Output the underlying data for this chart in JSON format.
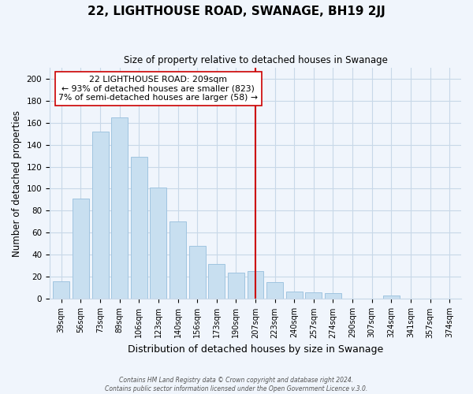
{
  "title": "22, LIGHTHOUSE ROAD, SWANAGE, BH19 2JJ",
  "subtitle": "Size of property relative to detached houses in Swanage",
  "xlabel": "Distribution of detached houses by size in Swanage",
  "ylabel": "Number of detached properties",
  "bar_labels": [
    "39sqm",
    "56sqm",
    "73sqm",
    "89sqm",
    "106sqm",
    "123sqm",
    "140sqm",
    "156sqm",
    "173sqm",
    "190sqm",
    "207sqm",
    "223sqm",
    "240sqm",
    "257sqm",
    "274sqm",
    "290sqm",
    "307sqm",
    "324sqm",
    "341sqm",
    "357sqm",
    "374sqm"
  ],
  "bar_values": [
    16,
    91,
    152,
    165,
    129,
    101,
    70,
    48,
    32,
    24,
    25,
    15,
    7,
    6,
    5,
    0,
    0,
    3,
    0,
    0,
    0
  ],
  "bar_color": "#c8dff0",
  "bar_edge_color": "#a0c4e0",
  "vline_x_index": 10,
  "vline_color": "#cc0000",
  "annotation_title": "22 LIGHTHOUSE ROAD: 209sqm",
  "annotation_line1": "← 93% of detached houses are smaller (823)",
  "annotation_line2": "7% of semi-detached houses are larger (58) →",
  "annotation_box_color": "#ffffff",
  "annotation_border_color": "#cc0000",
  "ylim": [
    0,
    210
  ],
  "yticks": [
    0,
    20,
    40,
    60,
    80,
    100,
    120,
    140,
    160,
    180,
    200
  ],
  "footer_line1": "Contains HM Land Registry data © Crown copyright and database right 2024.",
  "footer_line2": "Contains public sector information licensed under the Open Government Licence v.3.0.",
  "bg_color": "#f0f5fc",
  "grid_color": "#c8d8e8"
}
